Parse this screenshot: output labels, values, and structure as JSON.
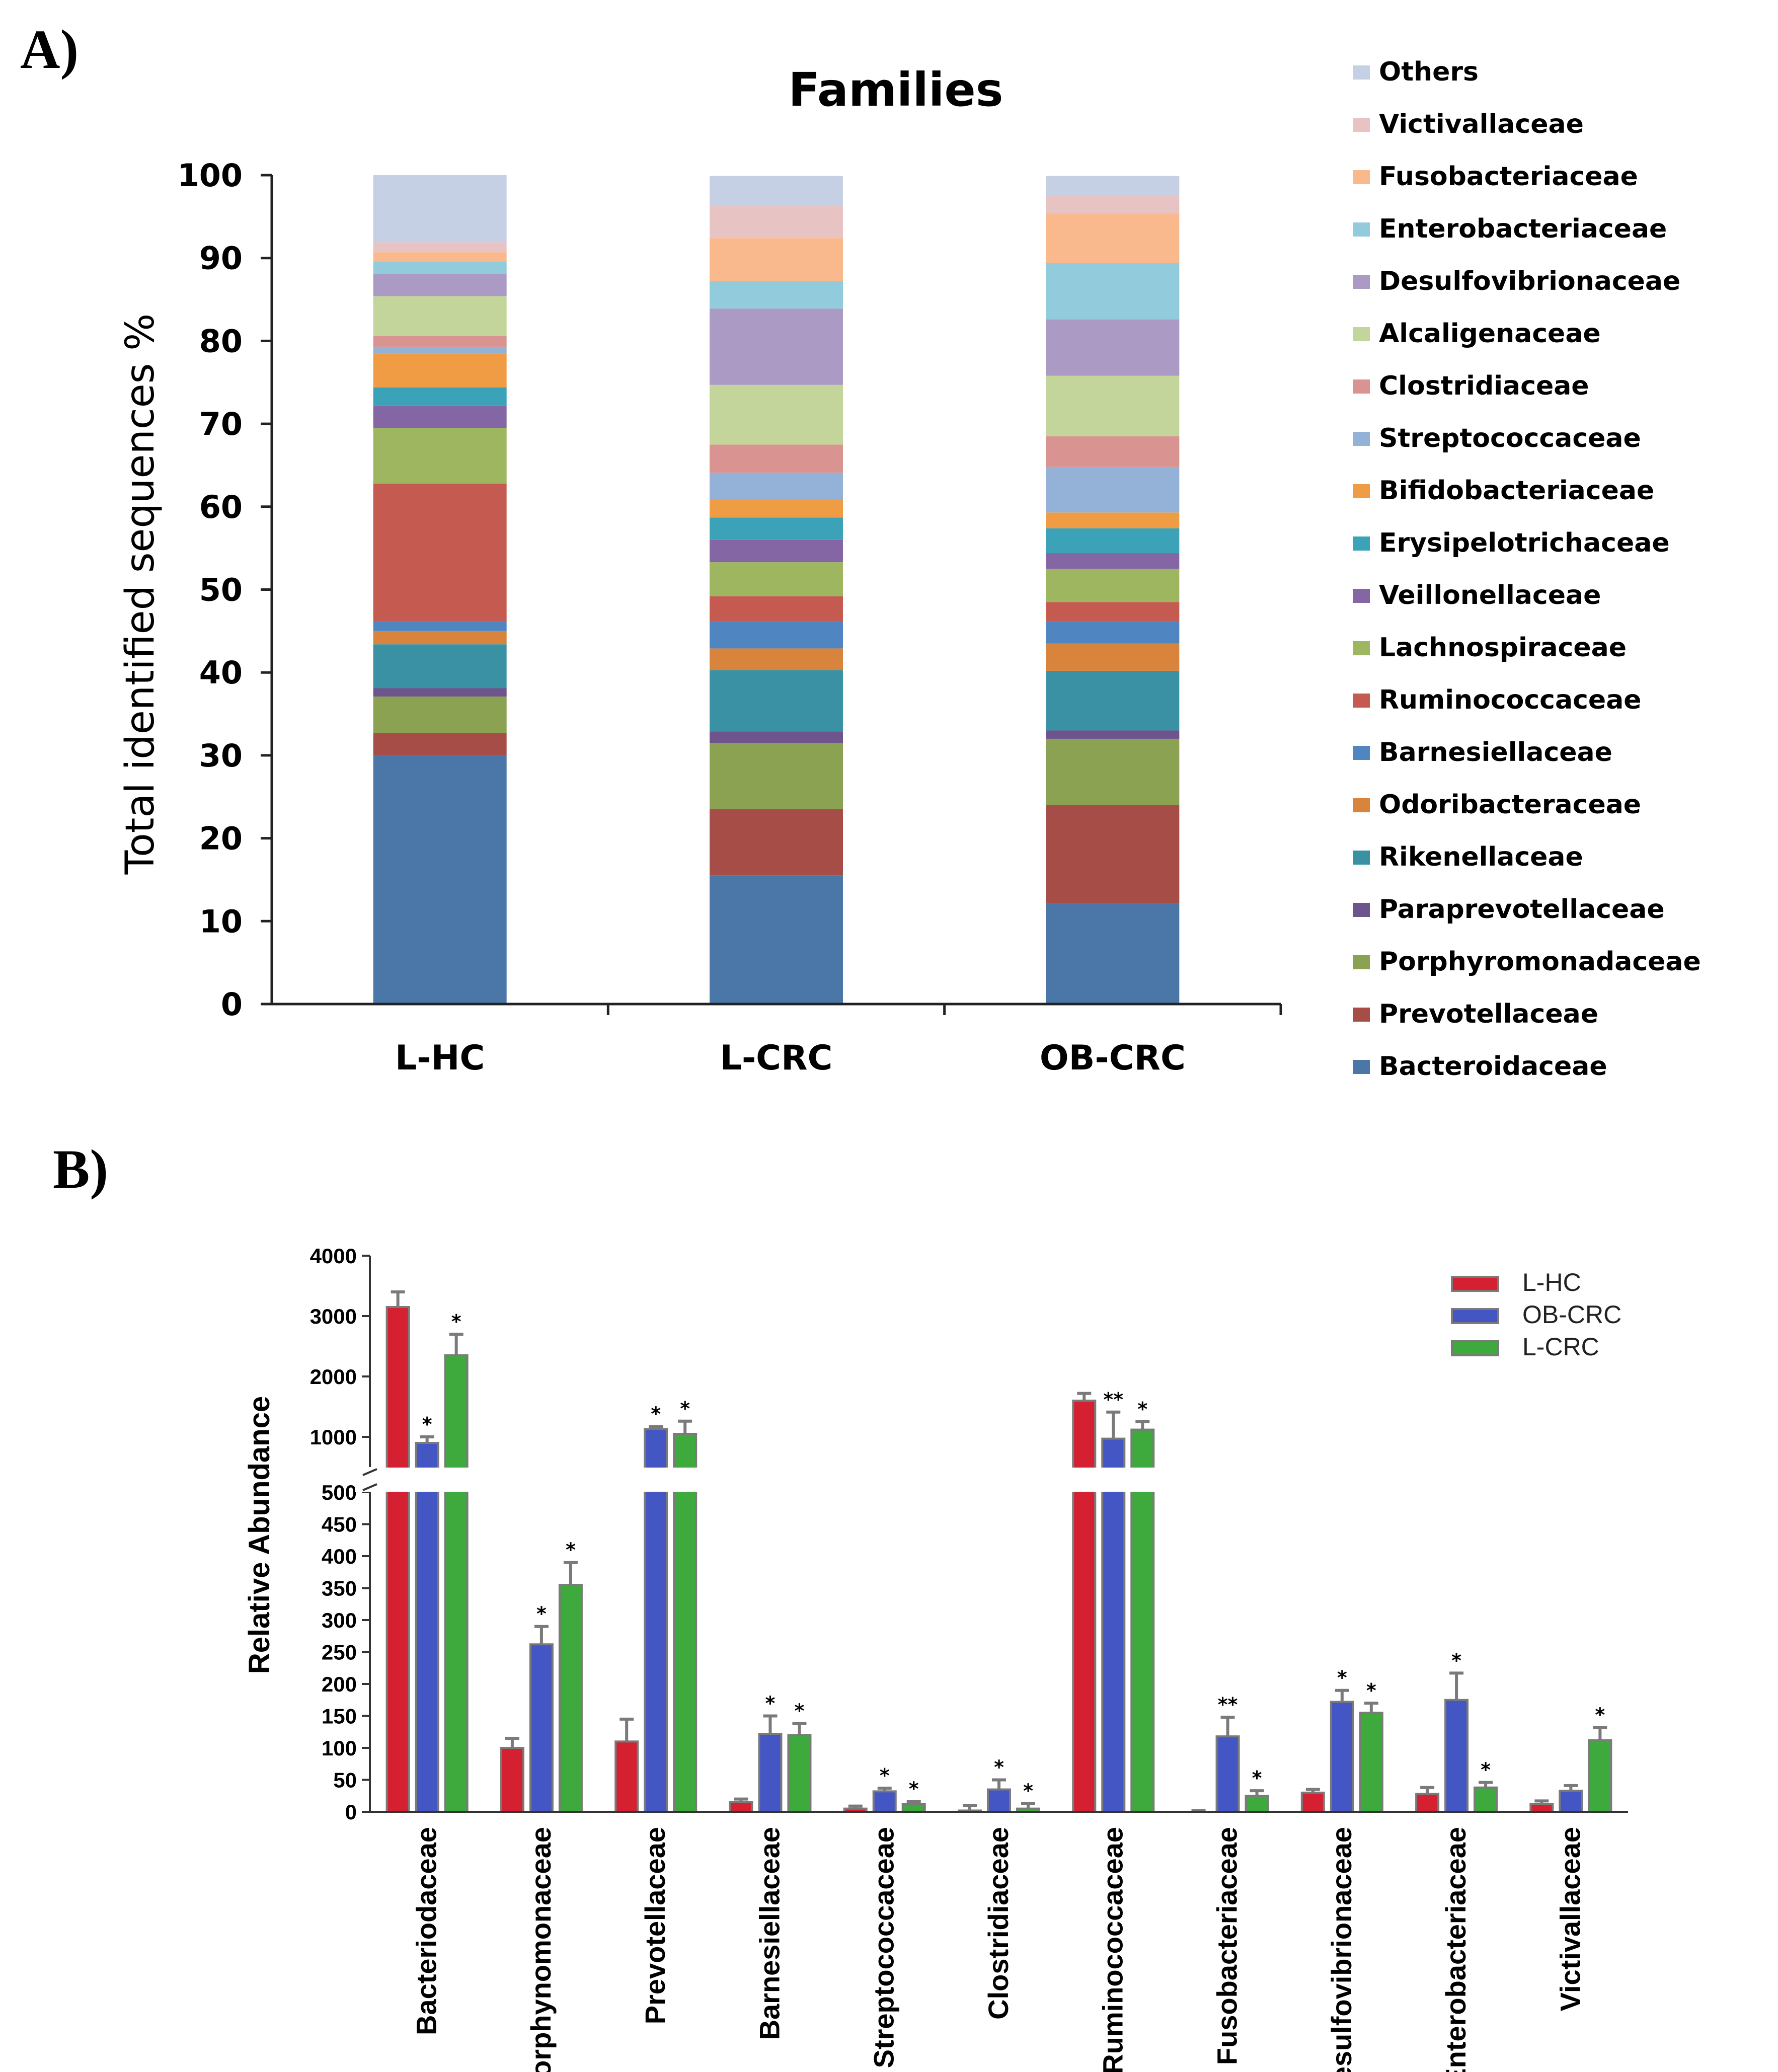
{
  "panel_a_label": "A)",
  "panel_b_label": "B)",
  "chart_data": [
    {
      "type": "bar",
      "stacked": true,
      "title": "Families",
      "ylabel": "Total identified sequences %",
      "xlabel": "",
      "ylim": [
        0,
        100
      ],
      "yticks": [
        0,
        10,
        20,
        30,
        40,
        50,
        60,
        70,
        80,
        90,
        100
      ],
      "categories": [
        "L-HC",
        "L-CRC",
        "OB-CRC"
      ],
      "legend_position": "right",
      "series": [
        {
          "name": "Bacteroidaceae",
          "color": "#4a77a8",
          "values": [
            30,
            15.5,
            12.2
          ]
        },
        {
          "name": "Prevotellaceae",
          "color": "#a64d48",
          "values": [
            2.7,
            8,
            11.8
          ]
        },
        {
          "name": "Porphyromonadaceae",
          "color": "#8aa252",
          "values": [
            4.4,
            8,
            8
          ]
        },
        {
          "name": "Paraprevotellaceae",
          "color": "#6e548c",
          "values": [
            1.0,
            1.4,
            1.0
          ]
        },
        {
          "name": "Rikenellaceae",
          "color": "#3a91a4",
          "values": [
            5.3,
            7.4,
            7.2
          ]
        },
        {
          "name": "Odoribacteraceae",
          "color": "#d8843c",
          "values": [
            1.6,
            2.6,
            3.3
          ]
        },
        {
          "name": "Barnesiellaceae",
          "color": "#4f86c2",
          "values": [
            1.1,
            3.2,
            2.6
          ]
        },
        {
          "name": "Ruminococcaceae",
          "color": "#c55a50",
          "values": [
            16.7,
            3.1,
            2.4
          ]
        },
        {
          "name": "Lachnospiraceae",
          "color": "#9db65f",
          "values": [
            6.7,
            4.1,
            4.0
          ]
        },
        {
          "name": "Veillonellaceae",
          "color": "#8466a4",
          "values": [
            2.7,
            2.7,
            1.9
          ]
        },
        {
          "name": "Erysipelotrichaceae",
          "color": "#3ca2b8",
          "values": [
            2.2,
            2.7,
            3.0
          ]
        },
        {
          "name": "Bifidobacteriaceae",
          "color": "#f09c44",
          "values": [
            4.1,
            2.2,
            1.9
          ]
        },
        {
          "name": "Streptococcaceae",
          "color": "#94b1d8",
          "values": [
            0.8,
            3.2,
            5.5
          ]
        },
        {
          "name": "Clostridiaceae",
          "color": "#d99491",
          "values": [
            1.3,
            3.4,
            3.7
          ]
        },
        {
          "name": "Alcaligenaceae",
          "color": "#c3d59a",
          "values": [
            4.8,
            7.2,
            7.3
          ]
        },
        {
          "name": "Desulfovibrionaceae",
          "color": "#ab9ac4",
          "values": [
            2.7,
            9.2,
            6.8
          ]
        },
        {
          "name": "Enterobacteriaceae",
          "color": "#92cbdc",
          "values": [
            1.5,
            3.3,
            6.8
          ]
        },
        {
          "name": "Fusobacteriaceae",
          "color": "#fab98c",
          "values": [
            1.1,
            5.2,
            6.0
          ]
        },
        {
          "name": "Victivallaceae",
          "color": "#e8c3c4",
          "values": [
            1.2,
            4.0,
            2.2
          ]
        },
        {
          "name": "Others",
          "color": "#c5d0e4",
          "values": [
            8.1,
            3.5,
            2.3
          ]
        }
      ]
    },
    {
      "type": "bar",
      "stacked": false,
      "title": "",
      "xlabel": "",
      "ylabel": "Relative Abundance",
      "axis_break": true,
      "ylim_lower": [
        0,
        500
      ],
      "ylim_upper": [
        500,
        4000
      ],
      "yticks_lower": [
        0,
        50,
        100,
        150,
        200,
        250,
        300,
        350,
        400,
        450,
        500
      ],
      "yticks_upper": [
        1000,
        2000,
        3000,
        4000
      ],
      "legend_position": "top-right",
      "categories": [
        "Bacteriodaceae",
        "Porphynomonaceae",
        "Prevotellaceae",
        "Barnesiellaceae",
        "Streptococcaceae",
        "Clostridiaceae",
        "Ruminococcaceae",
        "Fusobacteriaceae",
        "Desulfovibrionaceae",
        "Enterobacteriaceae",
        "Victivallaceae"
      ],
      "series": [
        {
          "name": "L-HC",
          "color": "#d42030",
          "values": [
            3150,
            100,
            110,
            15,
            5,
            2,
            1600,
            0,
            30,
            28,
            12
          ],
          "errors": [
            250,
            15,
            35,
            5,
            4,
            8,
            120,
            2,
            5,
            10,
            5
          ],
          "significance": [
            "",
            "",
            "",
            "",
            "",
            "",
            "",
            "",
            "",
            "",
            ""
          ]
        },
        {
          "name": "OB-CRC",
          "color": "#4356c4",
          "values": [
            900,
            262,
            1130,
            122,
            32,
            35,
            970,
            118,
            172,
            175,
            33
          ],
          "errors": [
            100,
            28,
            40,
            28,
            5,
            15,
            440,
            30,
            18,
            42,
            8
          ],
          "significance": [
            "*",
            "*",
            "*",
            "*",
            "*",
            "*",
            "**",
            "**",
            "*",
            "*",
            ""
          ]
        },
        {
          "name": "L-CRC",
          "color": "#3eaa3e",
          "values": [
            2350,
            355,
            1050,
            120,
            12,
            5,
            1120,
            25,
            155,
            38,
            112
          ],
          "errors": [
            350,
            35,
            210,
            18,
            4,
            8,
            130,
            8,
            15,
            8,
            20
          ],
          "significance": [
            "*",
            "*",
            "*",
            "*",
            "*",
            "*",
            "*",
            "*",
            "*",
            "*",
            "*"
          ]
        }
      ]
    }
  ]
}
